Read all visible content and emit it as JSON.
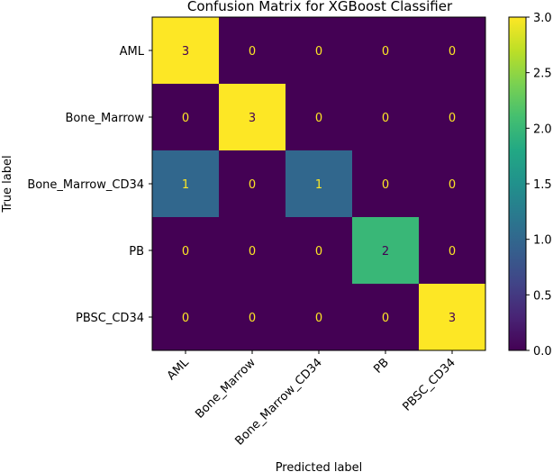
{
  "chart_data": {
    "type": "heatmap",
    "title": "Confusion Matrix for XGBoost Classifier",
    "xlabel": "Predicted label",
    "ylabel": "True label",
    "x_categories": [
      "AML",
      "Bone_Marrow",
      "Bone_Marrow_CD34",
      "PB",
      "PBSC_CD34"
    ],
    "y_categories": [
      "AML",
      "Bone_Marrow",
      "Bone_Marrow_CD34",
      "PB",
      "PBSC_CD34"
    ],
    "values": [
      [
        3,
        0,
        0,
        0,
        0
      ],
      [
        0,
        3,
        0,
        0,
        0
      ],
      [
        1,
        0,
        1,
        0,
        0
      ],
      [
        0,
        0,
        0,
        2,
        0
      ],
      [
        0,
        0,
        0,
        0,
        3
      ]
    ],
    "colorbar": {
      "range": [
        0,
        3
      ],
      "ticks": [
        "0.0",
        "0.5",
        "1.0",
        "1.5",
        "2.0",
        "2.5",
        "3.0"
      ],
      "colormap": "viridis"
    },
    "grid": false
  },
  "colors": {
    "viridis_low": "#440154",
    "viridis_mid": "#21918c",
    "viridis_high": "#fde725",
    "text_light": "#fde725",
    "text_dark": "#440154"
  }
}
